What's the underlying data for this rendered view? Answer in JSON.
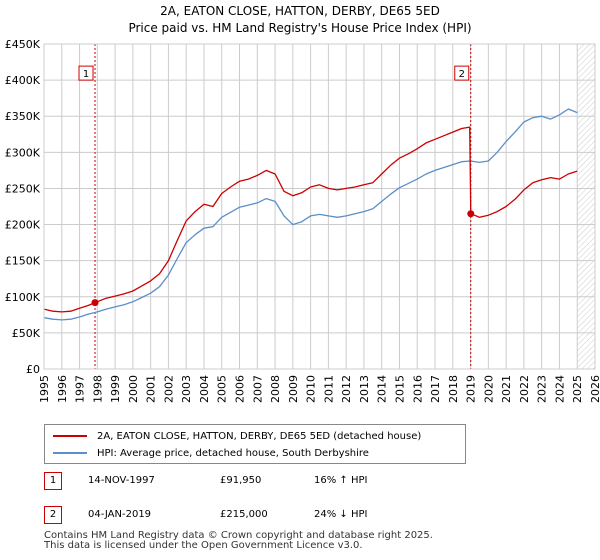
{
  "title_line1": "2A, EATON CLOSE, HATTON, DERBY, DE65 5ED",
  "title_line2": "Price paid vs. HM Land Registry's House Price Index (HPI)",
  "colors": {
    "property": "#cc0000",
    "hpi": "#5b8fc9",
    "marker": "#cc0000",
    "hatch": "#cccccc"
  },
  "legend": {
    "property_label": "2A, EATON CLOSE, HATTON, DERBY, DE65 5ED (detached house)",
    "hpi_label": "HPI: Average price, detached house, South Derbyshire"
  },
  "sales": [
    {
      "num": "1",
      "date": "14-NOV-1997",
      "price": "£91,950",
      "delta": "16% ↑ HPI"
    },
    {
      "num": "2",
      "date": "04-JAN-2019",
      "price": "£215,000",
      "delta": "24% ↓ HPI"
    }
  ],
  "footer_line1": "Contains HM Land Registry data © Crown copyright and database right 2025.",
  "footer_line2": "This data is licensed under the Open Government Licence v3.0.",
  "chart_data": {
    "type": "line",
    "title": "2A, EATON CLOSE, HATTON, DERBY, DE65 5ED",
    "subtitle": "Price paid vs. HM Land Registry's House Price Index (HPI)",
    "xlabel": "",
    "ylabel": "",
    "xlim": [
      1995,
      2026
    ],
    "ylim": [
      0,
      450000
    ],
    "grid": true,
    "x_ticks": [
      1995,
      1996,
      1997,
      1998,
      1999,
      2000,
      2001,
      2002,
      2003,
      2004,
      2005,
      2006,
      2007,
      2008,
      2009,
      2010,
      2011,
      2012,
      2013,
      2014,
      2015,
      2016,
      2017,
      2018,
      2019,
      2020,
      2021,
      2022,
      2023,
      2024,
      2025,
      2026
    ],
    "y_ticks": [
      {
        "value": 0,
        "label": "£0"
      },
      {
        "value": 50000,
        "label": "£50K"
      },
      {
        "value": 100000,
        "label": "£100K"
      },
      {
        "value": 150000,
        "label": "£150K"
      },
      {
        "value": 200000,
        "label": "£200K"
      },
      {
        "value": 250000,
        "label": "£250K"
      },
      {
        "value": 300000,
        "label": "£300K"
      },
      {
        "value": 350000,
        "label": "£350K"
      },
      {
        "value": 400000,
        "label": "£400K"
      },
      {
        "value": 450000,
        "label": "£450K"
      }
    ],
    "hatched_from": 2025.0,
    "series": [
      {
        "name": "2A, EATON CLOSE, HATTON, DERBY, DE65 5ED (detached house)",
        "color_key": "property",
        "x": [
          1995.0,
          1995.5,
          1996.0,
          1996.5,
          1997.0,
          1997.5,
          1997.87,
          1998.5,
          1999.0,
          1999.5,
          2000.0,
          2000.5,
          2001.0,
          2001.5,
          2002.0,
          2002.5,
          2003.0,
          2003.5,
          2004.0,
          2004.5,
          2005.0,
          2005.5,
          2006.0,
          2006.5,
          2007.0,
          2007.5,
          2008.0,
          2008.5,
          2009.0,
          2009.5,
          2010.0,
          2010.5,
          2011.0,
          2011.5,
          2012.0,
          2012.5,
          2013.0,
          2013.5,
          2014.0,
          2014.5,
          2015.0,
          2015.5,
          2016.0,
          2016.5,
          2017.0,
          2017.5,
          2018.0,
          2018.5,
          2018.95,
          2019.01,
          2019.5,
          2020.0,
          2020.5,
          2021.0,
          2021.5,
          2022.0,
          2022.5,
          2023.0,
          2023.5,
          2024.0,
          2024.5,
          2025.0
        ],
        "y": [
          83000,
          80000,
          79000,
          80000,
          84000,
          88000,
          91950,
          98000,
          101000,
          104000,
          108000,
          115000,
          122000,
          132000,
          150000,
          178000,
          205000,
          218000,
          228000,
          225000,
          243000,
          252000,
          260000,
          263000,
          268000,
          275000,
          270000,
          246000,
          240000,
          244000,
          252000,
          255000,
          250000,
          248000,
          250000,
          252000,
          255000,
          258000,
          270000,
          282000,
          292000,
          298000,
          305000,
          313000,
          318000,
          323000,
          328000,
          333000,
          335000,
          215000,
          210000,
          213000,
          218000,
          225000,
          235000,
          248000,
          258000,
          262000,
          265000,
          263000,
          270000,
          274000
        ]
      },
      {
        "name": "HPI: Average price, detached house, South Derbyshire",
        "color_key": "hpi",
        "x": [
          1995.0,
          1995.5,
          1996.0,
          1996.5,
          1997.0,
          1997.5,
          1998.0,
          1998.5,
          1999.0,
          1999.5,
          2000.0,
          2000.5,
          2001.0,
          2001.5,
          2002.0,
          2002.5,
          2003.0,
          2003.5,
          2004.0,
          2004.5,
          2005.0,
          2005.5,
          2006.0,
          2006.5,
          2007.0,
          2007.5,
          2008.0,
          2008.5,
          2009.0,
          2009.5,
          2010.0,
          2010.5,
          2011.0,
          2011.5,
          2012.0,
          2012.5,
          2013.0,
          2013.5,
          2014.0,
          2014.5,
          2015.0,
          2015.5,
          2016.0,
          2016.5,
          2017.0,
          2017.5,
          2018.0,
          2018.5,
          2019.0,
          2019.5,
          2020.0,
          2020.5,
          2021.0,
          2021.5,
          2022.0,
          2022.5,
          2023.0,
          2023.5,
          2024.0,
          2024.5,
          2025.0
        ],
        "y": [
          71000,
          69000,
          68000,
          69000,
          72000,
          76000,
          79000,
          83000,
          86000,
          89000,
          93000,
          99000,
          105000,
          114000,
          130000,
          153000,
          175000,
          186000,
          195000,
          197000,
          210000,
          217000,
          224000,
          227000,
          230000,
          236000,
          232000,
          212000,
          200000,
          204000,
          212000,
          214000,
          212000,
          210000,
          212000,
          215000,
          218000,
          222000,
          232000,
          242000,
          251000,
          257000,
          263000,
          270000,
          275000,
          279000,
          283000,
          287000,
          288000,
          286000,
          288000,
          300000,
          315000,
          328000,
          342000,
          348000,
          350000,
          346000,
          352000,
          360000,
          355000
        ]
      }
    ],
    "annotations": [
      {
        "label": "1",
        "x": 1997.87,
        "y": 91950
      },
      {
        "label": "2",
        "x": 2019.01,
        "y": 215000
      }
    ]
  }
}
